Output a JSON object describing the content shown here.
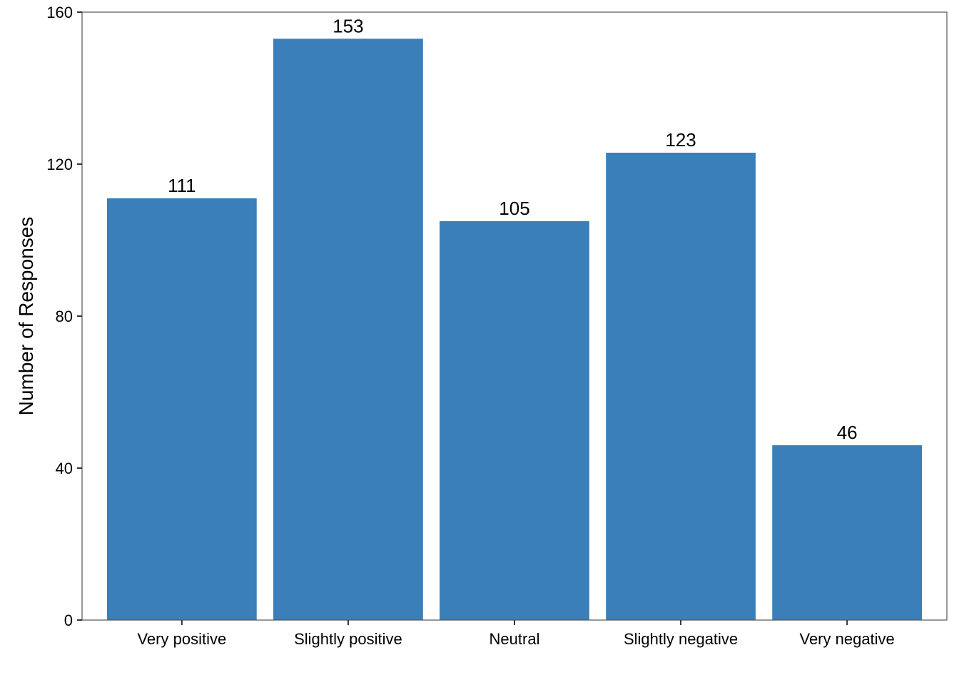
{
  "chart_data": {
    "type": "bar",
    "categories": [
      "Very positive",
      "Slightly positive",
      "Neutral",
      "Slightly negative",
      "Very negative"
    ],
    "values": [
      111,
      153,
      105,
      123,
      46
    ],
    "data_labels": [
      "111",
      "153",
      "105",
      "123",
      "46"
    ],
    "title": "",
    "xlabel": "",
    "ylabel": "Number of Responses",
    "ylim": [
      0,
      160
    ],
    "yticks": [
      0,
      40,
      80,
      120,
      160
    ],
    "ytick_labels": [
      "0",
      "40",
      "80",
      "120",
      "160"
    ],
    "grid": false,
    "legend": "none",
    "bar_color": "#3A7FBA"
  }
}
